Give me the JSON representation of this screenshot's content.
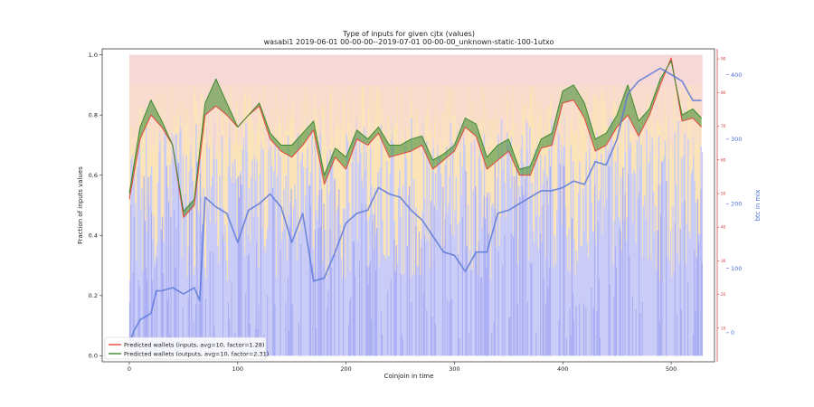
{
  "chart_data": {
    "type": "line",
    "title": "Type of inputs for given cjtx (values)",
    "subtitle": "wasabi1 2019-06-01 00-00-00--2019-07-01 00-00-00_unknown-static-100-1utxo",
    "xlabel": "Coinjoin in time",
    "ylabel": "Fraction of inputs values",
    "y2label": "btc in mix",
    "xlim": [
      -25,
      540
    ],
    "ylim": [
      -0.02,
      1.02
    ],
    "y2lim": [
      -45,
      440
    ],
    "y3lim": [
      0,
      93
    ],
    "x_ticks": [
      0,
      100,
      200,
      300,
      400,
      500
    ],
    "y_ticks": [
      0.0,
      0.2,
      0.4,
      0.6,
      0.8,
      1.0
    ],
    "y2_ticks": [
      0,
      100,
      200,
      300,
      400
    ],
    "y3_ticks": [
      10,
      20,
      30,
      40,
      50,
      60,
      70,
      80,
      90
    ],
    "legend_position": "lower-left",
    "series": [
      {
        "name": "Predicted wallets (inputs, avg=10, factor=1.28)",
        "color": "#e8453c",
        "x": [
          0,
          10,
          20,
          30,
          40,
          50,
          60,
          70,
          80,
          90,
          100,
          110,
          120,
          130,
          140,
          150,
          160,
          170,
          180,
          190,
          200,
          210,
          220,
          230,
          240,
          250,
          260,
          270,
          280,
          290,
          300,
          310,
          320,
          330,
          340,
          350,
          360,
          370,
          380,
          390,
          400,
          410,
          420,
          430,
          440,
          450,
          460,
          470,
          480,
          490,
          500,
          510,
          520,
          528
        ],
        "values": [
          0.52,
          0.72,
          0.8,
          0.76,
          0.7,
          0.46,
          0.5,
          0.8,
          0.83,
          0.8,
          0.76,
          0.8,
          0.83,
          0.72,
          0.68,
          0.66,
          0.7,
          0.75,
          0.57,
          0.66,
          0.62,
          0.72,
          0.7,
          0.74,
          0.66,
          0.67,
          0.68,
          0.7,
          0.62,
          0.65,
          0.68,
          0.76,
          0.73,
          0.62,
          0.65,
          0.68,
          0.6,
          0.6,
          0.69,
          0.7,
          0.84,
          0.85,
          0.79,
          0.68,
          0.7,
          0.76,
          0.8,
          0.73,
          0.8,
          0.9,
          0.99,
          0.78,
          0.79,
          0.76
        ]
      },
      {
        "name": "Predicted wallets (outputs, avg=10, factor=2.31)",
        "color": "#3c8a2e",
        "x": [
          0,
          10,
          20,
          30,
          40,
          50,
          60,
          70,
          80,
          90,
          100,
          110,
          120,
          130,
          140,
          150,
          160,
          170,
          180,
          190,
          200,
          210,
          220,
          230,
          240,
          250,
          260,
          270,
          280,
          290,
          300,
          310,
          320,
          330,
          340,
          350,
          360,
          370,
          380,
          390,
          400,
          410,
          420,
          430,
          440,
          450,
          460,
          470,
          480,
          490,
          500,
          510,
          520,
          528
        ],
        "values": [
          0.54,
          0.76,
          0.85,
          0.78,
          0.7,
          0.48,
          0.52,
          0.84,
          0.92,
          0.84,
          0.76,
          0.8,
          0.84,
          0.74,
          0.7,
          0.7,
          0.74,
          0.78,
          0.6,
          0.69,
          0.66,
          0.75,
          0.72,
          0.76,
          0.7,
          0.7,
          0.72,
          0.73,
          0.65,
          0.67,
          0.7,
          0.79,
          0.77,
          0.66,
          0.7,
          0.72,
          0.62,
          0.63,
          0.72,
          0.74,
          0.88,
          0.9,
          0.84,
          0.72,
          0.74,
          0.8,
          0.9,
          0.78,
          0.82,
          0.92,
          0.98,
          0.8,
          0.82,
          0.79
        ]
      },
      {
        "name": "btc in mix",
        "color": "#5a78d8",
        "axis": "y2",
        "x": [
          0,
          5,
          10,
          15,
          20,
          25,
          30,
          40,
          50,
          60,
          65,
          70,
          80,
          90,
          100,
          110,
          120,
          130,
          140,
          150,
          160,
          170,
          180,
          190,
          200,
          210,
          220,
          230,
          240,
          250,
          260,
          270,
          280,
          290,
          300,
          310,
          320,
          330,
          340,
          350,
          360,
          370,
          380,
          390,
          400,
          410,
          420,
          430,
          440,
          450,
          460,
          470,
          480,
          490,
          500,
          510,
          520,
          528
        ],
        "values": [
          -15,
          5,
          20,
          25,
          30,
          65,
          65,
          70,
          60,
          70,
          50,
          210,
          195,
          185,
          140,
          190,
          200,
          215,
          195,
          140,
          185,
          80,
          85,
          125,
          170,
          185,
          190,
          225,
          215,
          210,
          190,
          175,
          150,
          125,
          120,
          95,
          125,
          125,
          185,
          190,
          200,
          210,
          220,
          220,
          225,
          235,
          230,
          265,
          260,
          300,
          370,
          390,
          400,
          410,
          400,
          390,
          360,
          360
        ]
      }
    ],
    "background": {
      "description_free": true,
      "top_band_color": "#f6d8d6",
      "mid_band_color": "#fbe4b8",
      "low_band_color": "#c9ccf7",
      "bar_color": "#a9adf3"
    }
  }
}
